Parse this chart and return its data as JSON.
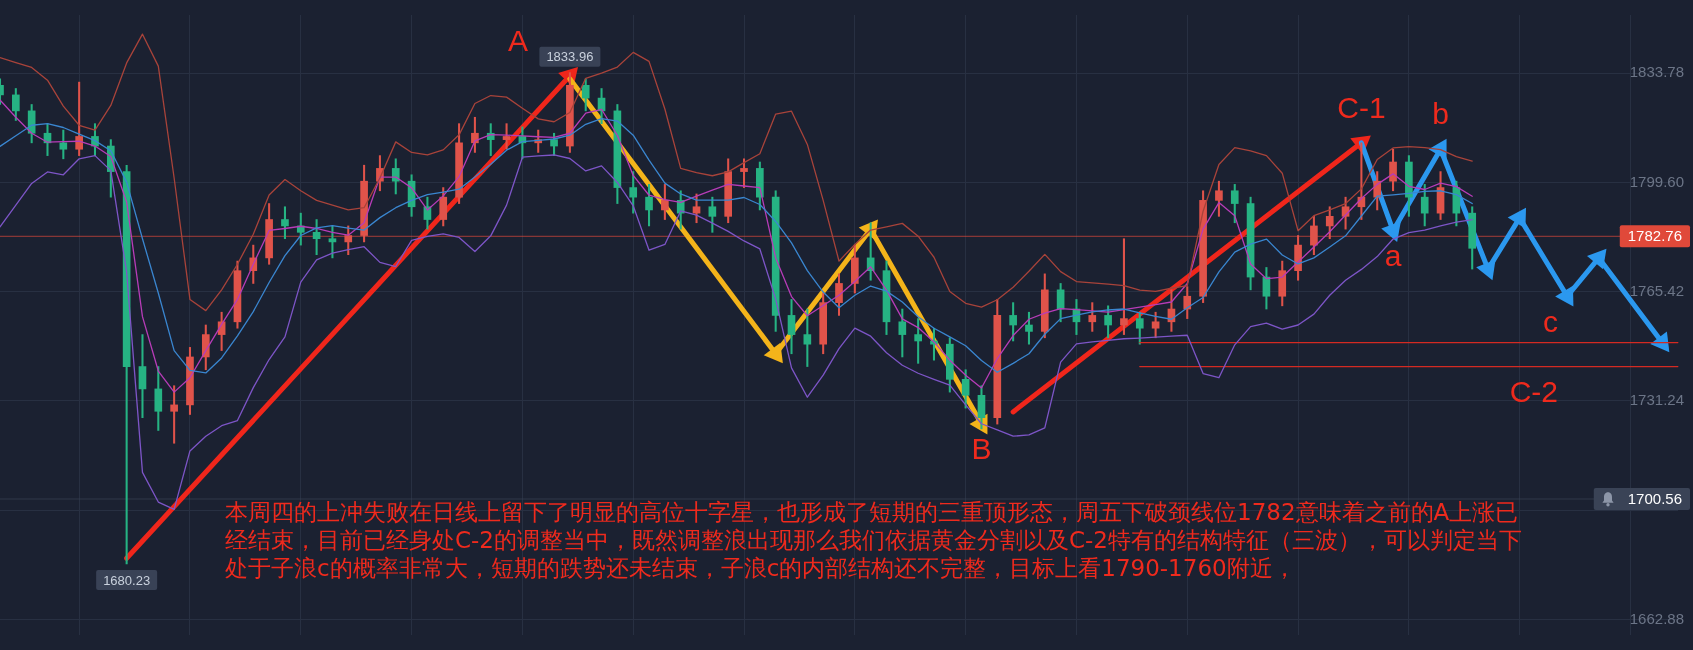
{
  "chart_data": {
    "type": "candlestick",
    "categories": [
      null,
      null,
      null,
      null,
      null,
      null,
      null,
      null,
      null,
      null,
      null,
      null,
      null,
      null,
      null,
      null,
      null,
      null,
      null,
      null,
      null,
      null,
      null,
      null,
      null,
      null,
      null,
      null,
      null,
      null,
      null,
      null,
      null,
      null,
      null,
      null,
      null,
      null,
      null,
      null,
      null,
      null,
      null,
      null,
      null,
      null,
      null,
      null,
      null,
      null,
      null,
      null,
      null,
      null,
      null,
      null,
      null,
      null,
      null,
      null,
      null,
      null,
      null,
      null,
      null,
      null,
      null,
      null,
      null,
      null,
      null,
      null,
      null,
      null,
      null,
      null,
      null,
      null,
      null,
      null,
      null,
      null,
      null,
      null,
      null,
      null,
      null,
      null,
      null,
      null,
      null,
      null,
      null,
      null,
      null,
      null,
      null,
      null,
      null,
      null,
      null,
      null,
      null,
      null,
      null,
      null,
      null
    ],
    "ohlc": [
      [
        1830,
        1832,
        1824,
        1827
      ],
      [
        1827,
        1829,
        1819,
        1822
      ],
      [
        1822,
        1824,
        1812,
        1815
      ],
      [
        1815,
        1818,
        1808,
        1812
      ],
      [
        1812,
        1816,
        1807,
        1810
      ],
      [
        1810,
        1831,
        1808,
        1814
      ],
      [
        1814,
        1818,
        1808,
        1811
      ],
      [
        1811,
        1813,
        1795,
        1803
      ],
      [
        1803,
        1805,
        1680.23,
        1742
      ],
      [
        1742,
        1752,
        1726,
        1735
      ],
      [
        1735,
        1742,
        1722,
        1728
      ],
      [
        1728,
        1736,
        1718,
        1730
      ],
      [
        1730,
        1748,
        1727,
        1745
      ],
      [
        1745,
        1755,
        1741,
        1752
      ],
      [
        1752,
        1759,
        1747,
        1756
      ],
      [
        1756,
        1775,
        1754,
        1772
      ],
      [
        1772,
        1780,
        1768,
        1776
      ],
      [
        1776,
        1793,
        1774,
        1788
      ],
      [
        1788,
        1792,
        1782,
        1786
      ],
      [
        1786,
        1790,
        1780,
        1784
      ],
      [
        1784,
        1788,
        1777,
        1782
      ],
      [
        1782,
        1786,
        1776,
        1781
      ],
      [
        1781,
        1786,
        1777,
        1783
      ],
      [
        1783,
        1805,
        1781,
        1800
      ],
      [
        1800,
        1808,
        1797,
        1804
      ],
      [
        1804,
        1807,
        1796,
        1800
      ],
      [
        1800,
        1802,
        1789,
        1792
      ],
      [
        1792,
        1795,
        1785,
        1788
      ],
      [
        1788,
        1798,
        1786,
        1795
      ],
      [
        1795,
        1818,
        1793,
        1812
      ],
      [
        1812,
        1820,
        1809,
        1815
      ],
      [
        1815,
        1818,
        1808,
        1813
      ],
      [
        1813,
        1818,
        1810,
        1814
      ],
      [
        1814,
        1817,
        1807,
        1812
      ],
      [
        1812,
        1816,
        1809,
        1813
      ],
      [
        1813,
        1815,
        1808,
        1811
      ],
      [
        1811,
        1833.96,
        1809,
        1830
      ],
      [
        1830,
        1832,
        1822,
        1826
      ],
      [
        1826,
        1829,
        1818,
        1822
      ],
      [
        1822,
        1824,
        1793,
        1798
      ],
      [
        1798,
        1803,
        1790,
        1795
      ],
      [
        1795,
        1799,
        1786,
        1791
      ],
      [
        1791,
        1799,
        1788,
        1794
      ],
      [
        1794,
        1797,
        1785,
        1790
      ],
      [
        1790,
        1796,
        1787,
        1792
      ],
      [
        1792,
        1795,
        1784,
        1789
      ],
      [
        1789,
        1807,
        1787,
        1803
      ],
      [
        1803,
        1807,
        1798,
        1804
      ],
      [
        1804,
        1806,
        1791,
        1795
      ],
      [
        1795,
        1797,
        1753,
        1758
      ],
      [
        1758,
        1763,
        1746,
        1752
      ],
      [
        1752,
        1760,
        1742,
        1749
      ],
      [
        1749,
        1765,
        1746,
        1762
      ],
      [
        1762,
        1771,
        1758,
        1768
      ],
      [
        1768,
        1780,
        1765,
        1776
      ],
      [
        1776,
        1787,
        1769,
        1772
      ],
      [
        1772,
        1775,
        1752,
        1756
      ],
      [
        1756,
        1760,
        1745,
        1752
      ],
      [
        1752,
        1757,
        1743,
        1750
      ],
      [
        1750,
        1754,
        1744,
        1749
      ],
      [
        1749,
        1751,
        1734,
        1738
      ],
      [
        1738,
        1741,
        1729,
        1733
      ],
      [
        1733,
        1736,
        1722.5,
        1726
      ],
      [
        1726,
        1763,
        1724,
        1758
      ],
      [
        1758,
        1762,
        1750,
        1755
      ],
      [
        1755,
        1759,
        1749,
        1753
      ],
      [
        1753,
        1771,
        1751,
        1766
      ],
      [
        1766,
        1768,
        1756,
        1760
      ],
      [
        1760,
        1763,
        1752,
        1756
      ],
      [
        1756,
        1762,
        1753,
        1758
      ],
      [
        1758,
        1761,
        1751,
        1755
      ],
      [
        1755,
        1782,
        1752,
        1757
      ],
      [
        1757,
        1759,
        1749,
        1754
      ],
      [
        1754,
        1759,
        1751,
        1756
      ],
      [
        1756,
        1766,
        1753,
        1760
      ],
      [
        1760,
        1767,
        1757,
        1764
      ],
      [
        1764,
        1797,
        1762,
        1794
      ],
      [
        1794,
        1800,
        1789,
        1797
      ],
      [
        1797,
        1799,
        1787,
        1793
      ],
      [
        1793,
        1795,
        1766,
        1770
      ],
      [
        1770,
        1773,
        1760,
        1764
      ],
      [
        1764,
        1775,
        1761,
        1772
      ],
      [
        1772,
        1783,
        1769,
        1780
      ],
      [
        1780,
        1789,
        1777,
        1786
      ],
      [
        1786,
        1792,
        1782,
        1789
      ],
      [
        1789,
        1795,
        1785,
        1792
      ],
      [
        1792,
        1812,
        1788,
        1795
      ],
      [
        1795,
        1803,
        1791,
        1800
      ],
      [
        1800,
        1810,
        1797,
        1806
      ],
      [
        1806,
        1808,
        1789,
        1795
      ],
      [
        1795,
        1799,
        1786,
        1790
      ],
      [
        1790,
        1803,
        1788,
        1798
      ],
      [
        1798,
        1800,
        1786,
        1790
      ],
      [
        1790,
        1792,
        1772.5,
        1779
      ],
      null,
      null,
      null,
      null,
      null,
      null,
      null,
      null,
      null,
      null,
      null,
      null,
      null
    ],
    "colors": [
      "#26b383",
      "#26b383",
      "#26b383",
      "#26b383",
      "#26b383",
      "#e0534a",
      "#26b383",
      "#26b383",
      "#26b383",
      "#26b383",
      "#26b383",
      "#e0534a",
      "#e0534a",
      "#e0534a",
      "#e0534a",
      "#e0534a",
      "#e0534a",
      "#e0534a",
      "#26b383",
      "#26b383",
      "#26b383",
      "#26b383",
      "#e0534a",
      "#e0534a",
      "#e0534a",
      "#26b383",
      "#26b383",
      "#26b383",
      "#e0534a",
      "#e0534a",
      "#e0534a",
      "#26b383",
      "#e0534a",
      "#26b383",
      "#e0534a",
      "#26b383",
      "#e0534a",
      "#26b383",
      "#26b383",
      "#26b383",
      "#26b383",
      "#26b383",
      "#e0534a",
      "#26b383",
      "#e0534a",
      "#26b383",
      "#e0534a",
      "#e0534a",
      "#26b383",
      "#26b383",
      "#26b383",
      "#26b383",
      "#e0534a",
      "#e0534a",
      "#e0534a",
      "#26b383",
      "#26b383",
      "#26b383",
      "#26b383",
      "#26b383",
      "#26b383",
      "#26b383",
      "#26b383",
      "#e0534a",
      "#26b383",
      "#26b383",
      "#e0534a",
      "#26b383",
      "#26b383",
      "#e0534a",
      "#26b383",
      "#e0534a",
      "#26b383",
      "#e0534a",
      "#e0534a",
      "#e0534a",
      "#e0534a",
      "#e0534a",
      "#26b383",
      "#26b383",
      "#26b383",
      "#e0534a",
      "#e0534a",
      "#e0534a",
      "#e0534a",
      "#e0534a",
      "#e0534a",
      "#e0534a",
      "#e0534a",
      "#26b383",
      "#26b383",
      "#e0534a",
      "#26b383",
      "#26b383",
      null,
      null,
      null,
      null,
      null,
      null,
      null,
      null,
      null,
      null,
      null,
      null,
      null
    ],
    "series": [
      {
        "type": "line",
        "color": "#a8433a",
        "values": [
          1838.7,
          1837.1,
          1835.6,
          1831.6,
          1823.5,
          1817.5,
          1816,
          1823.7,
          1837,
          1846,
          1836,
          1801,
          1763,
          1759.5,
          1766,
          1774,
          1783.4,
          1795.7,
          1800.5,
          1797,
          1794,
          1792.5,
          1791,
          1791.7,
          1801,
          1812.3,
          1809,
          1808.2,
          1809.8,
          1814.5,
          1824.3,
          1826.8,
          1826.3,
          1822.8,
          1819.5,
          1818.6,
          1821.5,
          1832.2,
          1833.8,
          1835.7,
          1840.3,
          1837.5,
          1822.6,
          1804,
          1802.7,
          1801.7,
          1802.9,
          1805.8,
          1808.6,
          1821,
          1821.9,
          1811.5,
          1794,
          1775,
          1780.2,
          1784.7,
          1785.7,
          1786.8,
          1782.8,
          1776.2,
          1765.5,
          1761.8,
          1760.6,
          1762.9,
          1766.8,
          1771.8,
          1777.1,
          1771.7,
          1768.6,
          1768.2,
          1767.8,
          1767.3,
          1765.9,
          1765.5,
          1766.5,
          1767.3,
          1790.6,
          1805.2,
          1810.5,
          1809.5,
          1808,
          1802.5,
          1784.5,
          1789.2,
          1791,
          1793,
          1797.6,
          1806.8,
          1810.4,
          1810.8,
          1810.5,
          1809.9,
          1807.7,
          1806.3,
          null,
          null,
          null,
          null,
          null,
          null,
          null,
          null,
          null,
          null,
          null,
          null,
          null
        ]
      },
      {
        "type": "line",
        "color": "#7d55c7",
        "values": [
          1785.7,
          1792.5,
          1799.3,
          1802.9,
          1802,
          1807,
          1808,
          1803.3,
          1771.6,
          1708.9,
          1699.6,
          1697.3,
          1715.6,
          1720.2,
          1723.5,
          1725.1,
          1735.4,
          1744.2,
          1751.3,
          1768.4,
          1775.4,
          1777.5,
          1778.6,
          1779.5,
          1774.6,
          1773.3,
          1781.5,
          1782.7,
          1783.5,
          1782.4,
          1778,
          1782.9,
          1792.5,
          1807.5,
          1807.9,
          1808.2,
          1807.1,
          1803.2,
          1804.8,
          1799.6,
          1792.3,
          1778.4,
          1780.2,
          1790.7,
          1789.4,
          1786.9,
          1784.3,
          1781.3,
          1778.8,
          1763.1,
          1741.6,
          1732.4,
          1739.3,
          1747.6,
          1754,
          1751.5,
          1746.3,
          1742.4,
          1739.9,
          1738,
          1736.2,
          1730,
          1724.1,
          1722.2,
          1720.2,
          1720.6,
          1722.8,
          1743.4,
          1749.1,
          1749.7,
          1750.2,
          1750.7,
          1750.9,
          1751.2,
          1751.5,
          1751.8,
          1739.8,
          1738.5,
          1748.8,
          1754.5,
          1755.6,
          1753.7,
          1755,
          1758.4,
          1764.3,
          1769,
          1772.4,
          1776.4,
          1781.9,
          1783.9,
          1784.7,
          1786,
          1787.2,
          1788,
          null,
          null,
          null,
          null,
          null,
          null,
          null,
          null,
          null,
          null,
          null,
          null,
          null
        ]
      },
      {
        "type": "line",
        "color": "#3a86d0",
        "values": [
          1810.9,
          1814.2,
          1817.5,
          1818,
          1816.8,
          1814.7,
          1812.7,
          1809.5,
          1799.7,
          1782,
          1765,
          1747,
          1740.8,
          1740,
          1744.7,
          1751.6,
          1759.2,
          1768.3,
          1776.7,
          1783,
          1785.4,
          1786.1,
          1785.3,
          1784.7,
          1788.6,
          1791.7,
          1794,
          1795.8,
          1796.6,
          1797.5,
          1801.3,
          1805.3,
          1809.7,
          1812.4,
          1812.8,
          1813.2,
          1814.4,
          1817.8,
          1819.6,
          1818.8,
          1814.4,
          1806.6,
          1799.4,
          1796,
          1794.1,
          1794.1,
          1794.1,
          1794.9,
          1792.7,
          1787.4,
          1780.7,
          1772,
          1765.3,
          1760.4,
          1764.3,
          1767.2,
          1765.6,
          1762.2,
          1757.6,
          1754,
          1751.3,
          1748.5,
          1743.9,
          1740.2,
          1743,
          1746,
          1752.1,
          1757,
          1758.1,
          1759.1,
          1759.7,
          1760,
          1758.8,
          1757.7,
          1756.8,
          1760.4,
          1763.6,
          1771.6,
          1777.8,
          1780.3,
          1781.9,
          1776.9,
          1774.1,
          1776,
          1779.4,
          1782.9,
          1789.1,
          1795.3,
          1795.7,
          1796.2,
          1796.8,
          1797,
          1795.8,
          1793,
          null,
          null,
          null,
          null,
          null,
          null,
          null,
          null,
          null,
          null,
          null,
          null,
          null
        ]
      },
      {
        "type": "line",
        "color": "#b73cb8",
        "values": [
          1825.4,
          1820,
          1815,
          1812.2,
          1812.4,
          1812.5,
          1811,
          1807.7,
          1793.5,
          1757.6,
          1740.6,
          1734,
          1738.5,
          1747,
          1755.2,
          1763,
          1774,
          1784.6,
          1785.2,
          1785.9,
          1785.2,
          1784,
          1783.1,
          1787,
          1801.3,
          1801.3,
          1797.9,
          1791,
          1795.4,
          1801.4,
          1812.6,
          1814.6,
          1814.4,
          1814.2,
          1813.9,
          1813.7,
          1815,
          1821.3,
          1822.5,
          1814.3,
          1801.8,
          1795.6,
          1794.2,
          1793.4,
          1795.3,
          1797.2,
          1799,
          1798.5,
          1798,
          1776,
          1763.9,
          1757.9,
          1761.1,
          1764.3,
          1768.6,
          1773.2,
          1765.9,
          1756.9,
          1754.2,
          1749.7,
          1744,
          1739.3,
          1735.3,
          1744.5,
          1751.7,
          1756.8,
          1758.7,
          1760.1,
          1759.8,
          1759.4,
          1759,
          1759.8,
          1760.6,
          1761.4,
          1762.2,
          1768,
          1785,
          1793.3,
          1789.2,
          1774.1,
          1769.5,
          1770,
          1774.7,
          1779.4,
          1784.2,
          1789.4,
          1794.6,
          1799,
          1802.3,
          1798.4,
          1797.4,
          1799.4,
          1798.3,
          1795.3,
          null,
          null,
          null,
          null,
          null,
          null,
          null,
          null,
          null,
          null,
          null,
          null,
          null
        ]
      },
      {
        "type": "line",
        "name": "A",
        "color": "#f0261b",
        "marker": "triangle",
        "values": [
          null,
          null,
          null,
          null,
          null,
          null,
          null,
          null,
          1682,
          null,
          null,
          null,
          null,
          null,
          null,
          null,
          null,
          null,
          null,
          null,
          null,
          null,
          null,
          null,
          null,
          null,
          null,
          null,
          null,
          null,
          null,
          null,
          null,
          null,
          null,
          null,
          1833,
          null,
          null,
          null,
          null,
          null,
          null,
          null,
          null,
          null,
          null,
          null,
          null,
          null,
          null,
          null,
          null,
          null,
          null,
          null,
          null,
          null,
          null,
          null,
          null,
          null,
          null,
          null,
          null,
          null,
          null,
          null,
          null,
          null,
          null,
          null,
          null,
          null,
          null,
          null,
          null,
          null,
          null,
          null,
          null,
          null,
          null,
          null,
          null,
          null,
          null,
          null,
          null,
          null,
          null,
          null,
          null,
          null,
          null,
          null,
          null,
          null,
          null,
          null,
          null,
          null,
          null,
          null,
          null,
          null,
          null
        ]
      },
      {
        "type": "line",
        "name": "B",
        "color": "#f4b41a",
        "marker": "triangle",
        "values": [
          null,
          null,
          null,
          null,
          null,
          null,
          null,
          null,
          null,
          null,
          null,
          null,
          null,
          null,
          null,
          null,
          null,
          null,
          null,
          null,
          null,
          null,
          null,
          null,
          null,
          null,
          null,
          null,
          null,
          null,
          null,
          null,
          null,
          null,
          null,
          null,
          1832,
          null,
          null,
          null,
          null,
          null,
          null,
          null,
          null,
          null,
          null,
          null,
          null,
          1746,
          null,
          null,
          null,
          null,
          null,
          1785,
          null,
          null,
          null,
          null,
          null,
          null,
          1724,
          null,
          null,
          null,
          null,
          null,
          null,
          null,
          null,
          null,
          null,
          null,
          null,
          null,
          null,
          null,
          null,
          null,
          null,
          null,
          null,
          null,
          null,
          null,
          null,
          null,
          null,
          null,
          null,
          null,
          null,
          null,
          null,
          null,
          null,
          null,
          null,
          null,
          null,
          null,
          null,
          null,
          null,
          null,
          null
        ]
      },
      {
        "type": "line",
        "name": "C-1",
        "color": "#f0261b",
        "marker": "triangle",
        "values": [
          null,
          null,
          null,
          null,
          null,
          null,
          null,
          null,
          null,
          null,
          null,
          null,
          null,
          null,
          null,
          null,
          null,
          null,
          null,
          null,
          null,
          null,
          null,
          null,
          null,
          null,
          null,
          null,
          null,
          null,
          null,
          null,
          null,
          null,
          null,
          null,
          null,
          null,
          null,
          null,
          null,
          null,
          null,
          null,
          null,
          null,
          null,
          null,
          null,
          null,
          null,
          null,
          null,
          null,
          null,
          null,
          null,
          null,
          null,
          null,
          null,
          null,
          null,
          null,
          1727.8,
          null,
          null,
          null,
          null,
          null,
          null,
          null,
          null,
          null,
          null,
          null,
          null,
          null,
          null,
          null,
          null,
          null,
          null,
          null,
          null,
          null,
          1812,
          null,
          null,
          null,
          null,
          null,
          null,
          null,
          null,
          null,
          null,
          null,
          null,
          null,
          null,
          null,
          null,
          null,
          null,
          null,
          null
        ]
      },
      {
        "type": "line",
        "name": "a",
        "color": "#2b98ef",
        "marker": "triangle",
        "values": [
          null,
          null,
          null,
          null,
          null,
          null,
          null,
          null,
          null,
          null,
          null,
          null,
          null,
          null,
          null,
          null,
          null,
          null,
          null,
          null,
          null,
          null,
          null,
          null,
          null,
          null,
          null,
          null,
          null,
          null,
          null,
          null,
          null,
          null,
          null,
          null,
          null,
          null,
          null,
          null,
          null,
          null,
          null,
          null,
          null,
          null,
          null,
          null,
          null,
          null,
          null,
          null,
          null,
          null,
          null,
          null,
          null,
          null,
          null,
          null,
          null,
          null,
          null,
          null,
          null,
          null,
          null,
          null,
          null,
          null,
          null,
          null,
          null,
          null,
          null,
          null,
          null,
          null,
          null,
          null,
          null,
          null,
          null,
          null,
          null,
          null,
          1812,
          null,
          1784.5,
          null,
          null,
          null,
          null,
          null,
          null,
          null,
          null,
          null,
          null,
          null,
          null,
          null,
          null,
          null,
          null,
          null,
          null
        ]
      },
      {
        "type": "line",
        "name": "b",
        "color": "#2b98ef",
        "marker": "triangle",
        "values": [
          null,
          null,
          null,
          null,
          null,
          null,
          null,
          null,
          null,
          null,
          null,
          null,
          null,
          null,
          null,
          null,
          null,
          null,
          null,
          null,
          null,
          null,
          null,
          null,
          null,
          null,
          null,
          null,
          null,
          null,
          null,
          null,
          null,
          null,
          null,
          null,
          null,
          null,
          null,
          null,
          null,
          null,
          null,
          null,
          null,
          null,
          null,
          null,
          null,
          null,
          null,
          null,
          null,
          null,
          null,
          null,
          null,
          null,
          null,
          null,
          null,
          null,
          null,
          null,
          null,
          null,
          null,
          null,
          null,
          null,
          null,
          null,
          null,
          null,
          null,
          null,
          null,
          null,
          null,
          null,
          null,
          null,
          null,
          null,
          null,
          null,
          null,
          null,
          1784.5,
          null,
          null,
          1810,
          null,
          null,
          null,
          null,
          null,
          null,
          null,
          null,
          null,
          null,
          null,
          null,
          null,
          null,
          null
        ]
      },
      {
        "type": "line",
        "name": "c",
        "color": "#2b98ef",
        "marker": "triangle",
        "values": [
          null,
          null,
          null,
          null,
          null,
          null,
          null,
          null,
          null,
          null,
          null,
          null,
          null,
          null,
          null,
          null,
          null,
          null,
          null,
          null,
          null,
          null,
          null,
          null,
          null,
          null,
          null,
          null,
          null,
          null,
          null,
          null,
          null,
          null,
          null,
          null,
          null,
          null,
          null,
          null,
          null,
          null,
          null,
          null,
          null,
          null,
          null,
          null,
          null,
          null,
          null,
          null,
          null,
          null,
          null,
          null,
          null,
          null,
          null,
          null,
          null,
          null,
          null,
          null,
          null,
          null,
          null,
          null,
          null,
          null,
          null,
          null,
          null,
          null,
          null,
          null,
          null,
          null,
          null,
          null,
          null,
          null,
          null,
          null,
          null,
          null,
          null,
          null,
          null,
          null,
          null,
          1810,
          null,
          null,
          1772.5,
          null,
          1788.5,
          null,
          null,
          1764,
          null,
          null,
          null,
          null,
          null,
          null,
          null
        ]
      },
      {
        "type": "line",
        "color": "#2b98ef",
        "marker": "triangle",
        "values": [
          null,
          null,
          null,
          null,
          null,
          null,
          null,
          null,
          null,
          null,
          null,
          null,
          null,
          null,
          null,
          null,
          null,
          null,
          null,
          null,
          null,
          null,
          null,
          null,
          null,
          null,
          null,
          null,
          null,
          null,
          null,
          null,
          null,
          null,
          null,
          null,
          null,
          null,
          null,
          null,
          null,
          null,
          null,
          null,
          null,
          null,
          null,
          null,
          null,
          null,
          null,
          null,
          null,
          null,
          null,
          null,
          null,
          null,
          null,
          null,
          null,
          null,
          null,
          null,
          null,
          null,
          null,
          null,
          null,
          null,
          null,
          null,
          null,
          null,
          null,
          null,
          null,
          null,
          null,
          null,
          null,
          null,
          null,
          null,
          null,
          null,
          null,
          null,
          null,
          null,
          null,
          null,
          null,
          null,
          null,
          null,
          null,
          null,
          null,
          1764,
          null,
          1776,
          null,
          null,
          null,
          1749.5,
          null
        ]
      },
      {
        "type": "line",
        "color": "#d42a22",
        "values": [
          null,
          null,
          null,
          null,
          null,
          null,
          null,
          null,
          null,
          null,
          null,
          null,
          null,
          null,
          null,
          null,
          null,
          null,
          null,
          null,
          null,
          null,
          null,
          null,
          null,
          null,
          null,
          null,
          null,
          null,
          null,
          null,
          null,
          null,
          null,
          null,
          null,
          null,
          null,
          null,
          null,
          null,
          null,
          null,
          null,
          null,
          null,
          null,
          null,
          null,
          null,
          null,
          null,
          null,
          null,
          null,
          null,
          null,
          null,
          null,
          null,
          null,
          null,
          null,
          null,
          null,
          null,
          null,
          null,
          null,
          null,
          null,
          1749.5,
          1749.5,
          1749.5,
          1749.5,
          1749.5,
          1749.5,
          1749.5,
          1749.5,
          1749.5,
          1749.5,
          1749.5,
          1749.5,
          1749.5,
          1749.5,
          1749.5,
          1749.5,
          1749.5,
          1749.5,
          1749.5,
          1749.5,
          1749.5,
          1749.5,
          1749.5,
          1749.5,
          1749.5,
          1749.5,
          1749.5,
          1749.5,
          1749.5,
          1749.5,
          1749.5,
          1749.5,
          1749.5,
          1749.5,
          1749.5
        ]
      },
      {
        "type": "line",
        "name": "C-2",
        "color": "#d42a22",
        "values": [
          null,
          null,
          null,
          null,
          null,
          null,
          null,
          null,
          null,
          null,
          null,
          null,
          null,
          null,
          null,
          null,
          null,
          null,
          null,
          null,
          null,
          null,
          null,
          null,
          null,
          null,
          null,
          null,
          null,
          null,
          null,
          null,
          null,
          null,
          null,
          null,
          null,
          null,
          null,
          null,
          null,
          null,
          null,
          null,
          null,
          null,
          null,
          null,
          null,
          null,
          null,
          null,
          null,
          null,
          null,
          null,
          null,
          null,
          null,
          null,
          null,
          null,
          null,
          null,
          null,
          null,
          null,
          null,
          null,
          null,
          null,
          null,
          1742,
          1742,
          1742,
          1742,
          1742,
          1742,
          1742,
          1742,
          1742,
          1742,
          1742,
          1742,
          1742,
          1742,
          1742,
          1742,
          1742,
          1742,
          1742,
          1742,
          1742,
          1742,
          1742,
          1742,
          1742,
          1742,
          1742,
          1742,
          1742,
          1742,
          1742,
          1742,
          1742,
          1742,
          1742
        ]
      }
    ],
    "ylim": [
      1658,
      1852
    ],
    "yticks": [
      1833.78,
      {
        "value": 1799.6,
        "label": "1799.60"
      },
      1765.42,
      1731.24,
      {
        "value": 1697.06,
        "label": null
      },
      1662.88
    ],
    "tick_labels": "y",
    "grid": true,
    "ref_lines": [
      {
        "axis": "y",
        "value": 1782.76,
        "label": "1782.76",
        "color": "#e0493a"
      },
      {
        "axis": "y",
        "value": 1700.56,
        "label": "1700.56",
        "color": "#3a4356"
      }
    ],
    "annotations": [
      "本周四的上冲失败在日线上留下了明显的高位十字星，也形成了短期的三重顶形态，周五下破颈线位1782意味着之前的A上涨已经结束，目前已经身处C-2的调整当中，既然调整浪出现那么我们依据黄金分割以及C-2特有的结构特征（三波），可以判定当下处于子浪c的概率非常大，短期的跌势还未结束，子浪c的内部结构还不完整，目标上看1790-1760附近，",
      {
        "text": "1833.96",
        "y": 1833.96
      },
      {
        "text": "1680.23",
        "y": 1680.23
      }
    ]
  }
}
